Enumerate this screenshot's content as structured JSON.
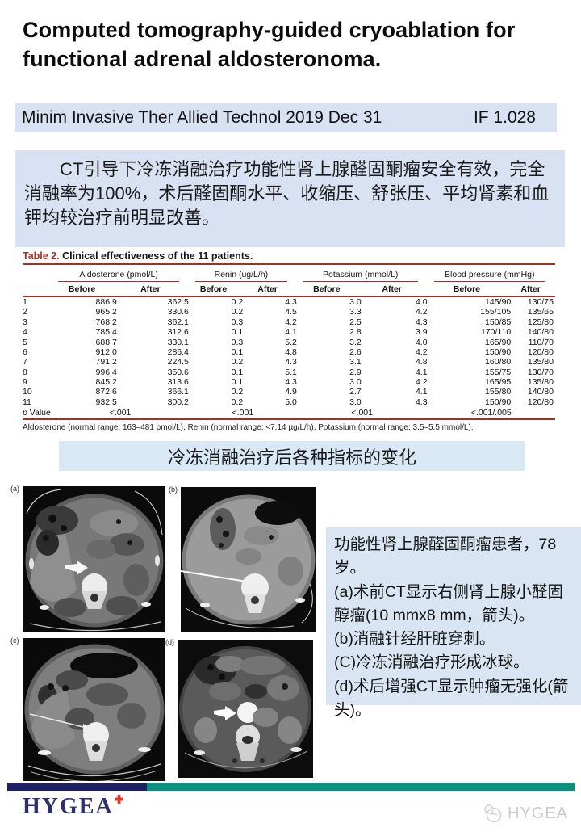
{
  "slide": {
    "title": "Computed tomography-guided cryoablation for functional adrenal aldosteronoma.",
    "journal": {
      "name": "Minim Invasive Ther Allied Technol 2019 Dec 31",
      "impact_factor": "IF 1.028"
    },
    "summary": "CT引导下冷冻消融治疗功能性肾上腺醛固酮瘤安全有效，完全消融率为100%，术后醛固酮水平、收缩压、舒张压、平均肾素和血钾均较治疗前明显改善。",
    "caption": "冷冻消融治疗后各种指标的变化"
  },
  "table": {
    "label": "Table 2.",
    "title": "Clinical effectiveness of the 11 patients.",
    "groups": [
      "Aldosterone (pmol/L)",
      "Renin (ug/L/h)",
      "Potassium (mmol/L)",
      "Blood pressure (mmHg)"
    ],
    "subheaders": [
      "Before",
      "After"
    ],
    "rows": [
      {
        "id": "1",
        "values": [
          "886.9",
          "362.5",
          "0.2",
          "4.3",
          "3.0",
          "4.0",
          "145/90",
          "130/75"
        ]
      },
      {
        "id": "2",
        "values": [
          "965.2",
          "330.6",
          "0.2",
          "4.5",
          "3.3",
          "4.2",
          "155/105",
          "135/65"
        ]
      },
      {
        "id": "3",
        "values": [
          "768.2",
          "362.1",
          "0.3",
          "4.2",
          "2.5",
          "4.3",
          "150/85",
          "125/80"
        ]
      },
      {
        "id": "4",
        "values": [
          "785.4",
          "312.6",
          "0.1",
          "4.1",
          "2.8",
          "3.9",
          "170/110",
          "140/80"
        ]
      },
      {
        "id": "5",
        "values": [
          "688.7",
          "330.1",
          "0.3",
          "5.2",
          "3.2",
          "4.0",
          "165/90",
          "110/70"
        ]
      },
      {
        "id": "6",
        "values": [
          "912.0",
          "286.4",
          "0.1",
          "4.8",
          "2.6",
          "4.2",
          "150/90",
          "120/80"
        ]
      },
      {
        "id": "7",
        "values": [
          "791.2",
          "224.5",
          "0.2",
          "4.3",
          "3.1",
          "4.8",
          "160/80",
          "135/80"
        ]
      },
      {
        "id": "8",
        "values": [
          "996.4",
          "350.6",
          "0.1",
          "5.1",
          "2.9",
          "4.1",
          "155/75",
          "130/70"
        ]
      },
      {
        "id": "9",
        "values": [
          "845.2",
          "313.6",
          "0.1",
          "4.3",
          "3.0",
          "4.2",
          "165/95",
          "135/80"
        ]
      },
      {
        "id": "10",
        "values": [
          "872.6",
          "366.1",
          "0.2",
          "4.9",
          "2.7",
          "4.1",
          "155/80",
          "140/80"
        ]
      },
      {
        "id": "11",
        "values": [
          "932.5",
          "300.2",
          "0.2",
          "5.0",
          "3.0",
          "4.3",
          "150/90",
          "120/80"
        ]
      }
    ],
    "p_row": {
      "label": "p Value",
      "values": [
        "<.001",
        "<.001",
        "<.001",
        "<.001/.005"
      ]
    },
    "footnote": "Aldosterone (normal range: 163–481 pmol/L), Renin (normal range: <7.14 µg/L/h), Potassium (normal range: 3.5–5.5 mmol/L)."
  },
  "figure": {
    "panel_labels": [
      "(a)",
      "(b)",
      "(c)",
      "(d)"
    ],
    "description_lines": [
      "功能性肾上腺醛固酮瘤患者，78岁。",
      "(a)术前CT显示右侧肾上腺小醛固醇瘤(10 mmx8 mm，箭头)。",
      "(b)消融针经肝脏穿刺。",
      "(C)冷冻消融治疗形成冰球。",
      "(d)术后增强CT显示肿瘤无强化(箭头)。"
    ]
  },
  "footer": {
    "brand": "HYGEA",
    "watermark": "HYGEA"
  },
  "colors": {
    "panel_blue": "#d9e2f3",
    "caption_blue": "#d9e8f5",
    "table_red": "#9e3028",
    "footer_navy": "#1b2164",
    "footer_teal": "#0a9180",
    "brand_navy": "#2b2f6d",
    "brand_cross_red": "#e63227"
  }
}
